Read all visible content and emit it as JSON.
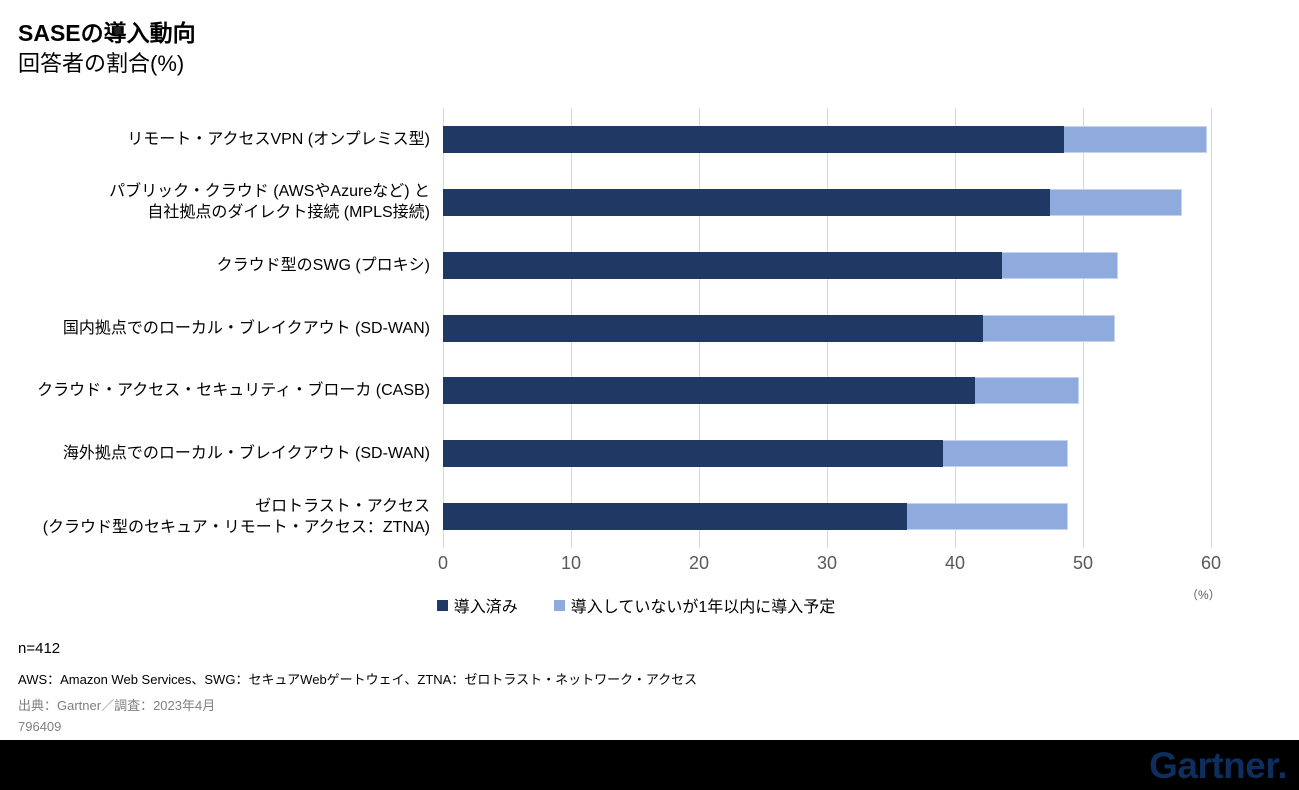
{
  "header": {
    "title": "SASEの導入動向",
    "subtitle": "回答者の割合(%)"
  },
  "chart_data": {
    "type": "bar",
    "orientation": "horizontal",
    "stacked": true,
    "title": "SASEの導入動向",
    "subtitle": "回答者の割合(%)",
    "categories": [
      "リモート・アクセスVPN (オンプレミス型)",
      "パブリック・クラウド (AWSやAzureなど) と\n自社拠点のダイレクト接続 (MPLS接続)",
      "クラウド型のSWG (プロキシ)",
      "国内拠点でのローカル・ブレイクアウト (SD-WAN)",
      "クラウド・アクセス・セキュリティ・ブローカ (CASB)",
      "海外拠点でのローカル・ブレイクアウト (SD-WAN)",
      "ゼロトラスト・アクセス\n(クラウド型のセキュア・リモート・アクセス：ZTNA)"
    ],
    "series": [
      {
        "name": "導入済み",
        "color": "#1f3864",
        "values": [
          44.7,
          43.7,
          40.3,
          38.9,
          38.3,
          36.0,
          33.4
        ]
      },
      {
        "name": "導入していないが1年以内に導入予定",
        "color": "#8faadc",
        "values": [
          10.3,
          9.5,
          8.3,
          9.5,
          7.5,
          9.0,
          11.6
        ]
      }
    ],
    "x_ticks": [
      0,
      10,
      20,
      30,
      40,
      50,
      60
    ],
    "xlim": [
      0,
      60
    ],
    "xlabel_unit": "（%）",
    "grid": "vertical",
    "legend_position": "bottom",
    "gridline_color": "#d9d9d9",
    "tick_label_color": "#595959"
  },
  "footer": {
    "sample_size": "n=412",
    "abbreviations": "AWS：Amazon Web Services、SWG：セキュアWebゲートウェイ、ZTNA：ゼロトラスト・ネットワーク・アクセス",
    "source": "出典：Gartner／調査：2023年4月",
    "document_id": "796409"
  },
  "branding": {
    "logo_text": "Gartner.",
    "logo_color": "#0e2e5e",
    "bar_color": "#000000"
  }
}
